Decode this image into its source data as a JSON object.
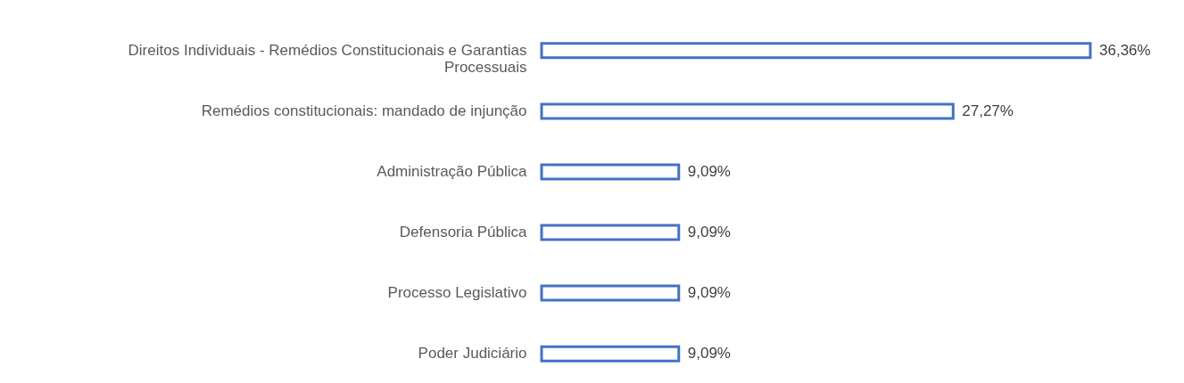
{
  "chart_data": {
    "type": "bar",
    "orientation": "horizontal",
    "categories": [
      "Direitos Individuais - Remédios Constitucionais e Garantias Processuais",
      "Remédios constitucionais: mandado de injunção",
      "Administração Pública",
      "Defensoria Pública",
      "Processo Legislativo",
      "Poder Judiciário"
    ],
    "values": [
      36.36,
      27.27,
      9.09,
      9.09,
      9.09,
      9.09
    ],
    "value_labels": [
      "36,36%",
      "27,27%",
      "9,09%",
      "9,09%",
      "9,09%",
      "9,09%"
    ],
    "color": "#4472c4"
  }
}
